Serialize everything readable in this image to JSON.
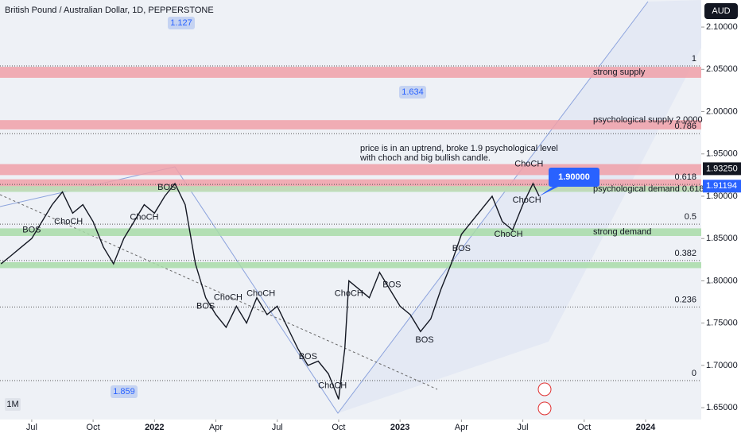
{
  "chart_data": {
    "type": "line",
    "title": "British Pound / Australian Dollar, 1D, PEPPERSTONE",
    "currency": "AUD",
    "interval": "1M",
    "color": "#131722",
    "x": [
      -1.5,
      -1,
      -0.5,
      0,
      0.5,
      1,
      1.5,
      2,
      2.5,
      3,
      3.5,
      4,
      4.5,
      5,
      5.5,
      6,
      6.5,
      7,
      7.5,
      8,
      8.5,
      9,
      9.5,
      10,
      10.5,
      11,
      11.5,
      12,
      12.5,
      13,
      13.5,
      14,
      14.5,
      15,
      15.3,
      15.5,
      16,
      16.5,
      17,
      17.5,
      18,
      18.5,
      19,
      19.5,
      20,
      20.5,
      21,
      21.5,
      22,
      22.5,
      23,
      23.5,
      24,
      24.5,
      24.8
    ],
    "values": [
      1.82,
      1.83,
      1.84,
      1.85,
      1.87,
      1.89,
      1.905,
      1.88,
      1.89,
      1.87,
      1.84,
      1.82,
      1.85,
      1.87,
      1.89,
      1.88,
      1.9,
      1.915,
      1.89,
      1.82,
      1.78,
      1.76,
      1.745,
      1.77,
      1.75,
      1.78,
      1.76,
      1.77,
      1.745,
      1.72,
      1.7,
      1.705,
      1.69,
      1.66,
      1.72,
      1.8,
      1.79,
      1.78,
      1.81,
      1.79,
      1.77,
      1.76,
      1.74,
      1.755,
      1.79,
      1.82,
      1.855,
      1.87,
      1.885,
      1.9,
      1.87,
      1.86,
      1.89,
      1.915,
      1.9
    ],
    "xlim": [
      -1.55,
      32.72
    ],
    "xticks": [
      {
        "value": 0,
        "label": "Jul"
      },
      {
        "value": 3,
        "label": "Oct"
      },
      {
        "value": 6,
        "label": "2022"
      },
      {
        "value": 9,
        "label": "Apr"
      },
      {
        "value": 12,
        "label": "Jul"
      },
      {
        "value": 15,
        "label": "Oct"
      },
      {
        "value": 18,
        "label": "2023"
      },
      {
        "value": 21,
        "label": "Apr"
      },
      {
        "value": 24,
        "label": "Jul"
      },
      {
        "value": 27,
        "label": "Oct"
      },
      {
        "value": 30,
        "label": "2024"
      }
    ],
    "ylim": [
      1.636,
      2.132
    ],
    "yticks": [
      {
        "value": 1.65,
        "label": "1.65000"
      },
      {
        "value": 1.7,
        "label": "1.70000"
      },
      {
        "value": 1.75,
        "label": "1.75000"
      },
      {
        "value": 1.8,
        "label": "1.80000"
      },
      {
        "value": 1.85,
        "label": "1.85000"
      },
      {
        "value": 1.9,
        "label": "1.90000"
      },
      {
        "value": 1.95,
        "label": "1.95000"
      },
      {
        "value": 2.0,
        "label": "2.00000"
      },
      {
        "value": 2.05,
        "label": "2.05000"
      },
      {
        "value": 2.1,
        "label": "2.10000"
      }
    ],
    "zones": [
      {
        "label": "strong supply",
        "low": 2.04,
        "high": 2.053,
        "color": "#f0a0a8"
      },
      {
        "label": "psychological supply 2.0000",
        "low": 1.979,
        "high": 1.99,
        "color": "#f0a0a8"
      },
      {
        "low": 1.925,
        "high": 1.938,
        "color": "#f0a0a8"
      },
      {
        "low": 1.906,
        "high": 1.92,
        "color": "#f0a0a8"
      },
      {
        "label": "psychological demand 0.618",
        "low": 1.905,
        "high": 1.912,
        "color": "#b8e0b8"
      },
      {
        "label": "strong demand",
        "low": 1.853,
        "high": 1.862,
        "color": "#a8dca8"
      },
      {
        "low": 1.815,
        "high": 1.822,
        "color": "#a8dca8"
      }
    ],
    "fib_levels": [
      {
        "level": 1,
        "value": 2.054
      },
      {
        "level": 0.786,
        "value": 1.974
      },
      {
        "level": 0.618,
        "value": 1.914
      },
      {
        "level": 0.5,
        "value": 1.867
      },
      {
        "level": 0.382,
        "value": 1.824
      },
      {
        "level": 0.236,
        "value": 1.769
      },
      {
        "level": 0,
        "value": 1.682
      }
    ],
    "price_tags": [
      {
        "value": 1.9325,
        "label": "1.93250",
        "color": "#131722"
      },
      {
        "value": 1.91194,
        "label": "1.91194",
        "color": "#2962ff"
      }
    ],
    "callout": {
      "value": 1.9,
      "label": "1.90000"
    },
    "annotation": [
      "price is in an uptrend, broke 1.9 psychological level",
      "with choch and big bullish candle."
    ],
    "tags": [
      "1.127",
      "1.634",
      "1.859"
    ],
    "markers": [
      {
        "label": "BOS",
        "x": 0,
        "value": 1.86
      },
      {
        "label": "ChoCH",
        "x": 1.8,
        "value": 1.87
      },
      {
        "label": "BOS",
        "x": 6.6,
        "value": 1.91
      },
      {
        "label": "ChoCH",
        "x": 5.5,
        "value": 1.875
      },
      {
        "label": "BOS",
        "x": 8.5,
        "value": 1.77
      },
      {
        "label": "ChoCH",
        "x": 9.6,
        "value": 1.78
      },
      {
        "label": "ChoCH",
        "x": 11.2,
        "value": 1.785
      },
      {
        "label": "BOS",
        "x": 13.5,
        "value": 1.71
      },
      {
        "label": "ChoCH",
        "x": 14.7,
        "value": 1.676
      },
      {
        "label": "ChoCH",
        "x": 15.5,
        "value": 1.785
      },
      {
        "label": "BOS",
        "x": 17.6,
        "value": 1.795
      },
      {
        "label": "BOS",
        "x": 19.2,
        "value": 1.73
      },
      {
        "label": "BOS",
        "x": 21,
        "value": 1.838
      },
      {
        "label": "ChoCH",
        "x": 23.3,
        "value": 1.855
      },
      {
        "label": "ChoCH",
        "x": 24.3,
        "value": 1.938
      },
      {
        "label": "ChoCH",
        "x": 24.2,
        "value": 1.895
      }
    ]
  }
}
